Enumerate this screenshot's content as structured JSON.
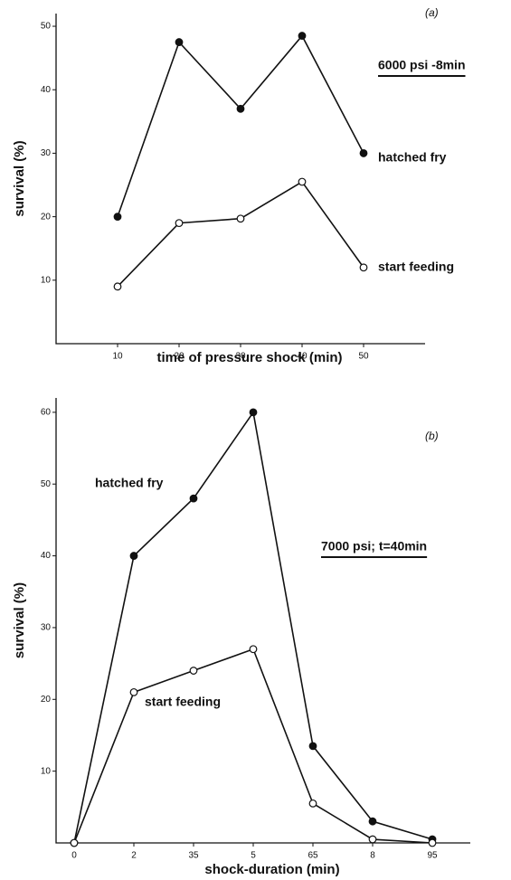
{
  "chart_data": [
    {
      "type": "line",
      "panel": "(a)",
      "note": "6000 psi -8min",
      "xlabel": "time of pressure shock (min)",
      "ylabel": "survival (%)",
      "x": [
        10,
        20,
        30,
        40,
        50
      ],
      "series": [
        {
          "name": "hatched fry",
          "color": "#111",
          "marker": "filled",
          "values": [
            20,
            47.5,
            37,
            48.5,
            30
          ]
        },
        {
          "name": "start feeding",
          "color": "#111",
          "marker": "open",
          "values": [
            9,
            19,
            19.7,
            25.5,
            12
          ]
        }
      ],
      "xlim": [
        0,
        60
      ],
      "xticks": [
        10,
        20,
        30,
        40,
        50
      ],
      "ylim": [
        0,
        52
      ],
      "yticks": [
        10,
        20,
        30,
        40,
        50
      ]
    },
    {
      "type": "line",
      "panel": "(b)",
      "note": "7000 psi; t=40min",
      "xlabel": "shock-duration (min)",
      "ylabel": "survival (%)",
      "categories": [
        "0",
        "2",
        "35",
        "5",
        "65",
        "8",
        "95"
      ],
      "series": [
        {
          "name": "hatched fry",
          "color": "#111",
          "marker": "filled",
          "values": [
            0,
            40,
            48,
            60,
            13.5,
            3,
            0.5
          ]
        },
        {
          "name": "start feeding",
          "color": "#111",
          "marker": "open",
          "values": [
            0,
            21,
            24,
            27,
            5.5,
            0.5,
            0
          ]
        }
      ],
      "ylim": [
        0,
        62
      ],
      "yticks": [
        10,
        20,
        30,
        40,
        50,
        60
      ]
    }
  ]
}
